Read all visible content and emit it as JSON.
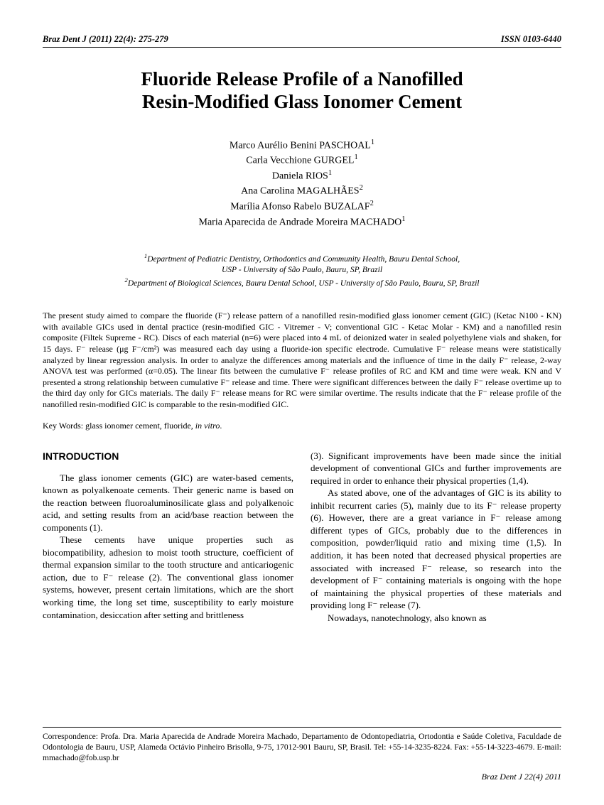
{
  "header": {
    "journal": "Braz Dent J (2011) 22(4): 275-279",
    "issn": "ISSN 0103-6440"
  },
  "title_line1": "Fluoride Release Profile of a Nanofilled",
  "title_line2": "Resin-Modified Glass Ionomer Cement",
  "authors": {
    "a1": "Marco Aurélio Benini PASCHOAL",
    "a2": "Carla Vecchione GURGEL",
    "a3": "Daniela RIOS",
    "a4": "Ana Carolina MAGALHÃES",
    "a5": "Marília Afonso Rabelo BUZALAF",
    "a6": "Maria Aparecida de Andrade Moreira MACHADO"
  },
  "affiliations": {
    "aff1": "Department of Pediatric Dentistry, Orthodontics and Community Health, Bauru Dental School,",
    "aff1b": "USP - University of São Paulo, Bauru, SP, Brazil",
    "aff2": "Department of Biological Sciences, Bauru Dental School, USP - University of São Paulo, Bauru, SP, Brazil"
  },
  "abstract": "The present study aimed to compare the fluoride (F⁻) release pattern of a nanofilled resin-modified glass ionomer cement (GIC) (Ketac N100 - KN) with available GICs used in dental practice (resin-modified GIC - Vitremer - V; conventional GIC - Ketac Molar - KM) and a nanofilled resin composite (Filtek Supreme - RC). Discs of each material (n=6) were placed into 4 mL of deionized water in sealed polyethylene vials and shaken, for 15 days. F⁻ release (μg F⁻/cm²) was measured each day using a fluoride-ion specific electrode. Cumulative F⁻ release means were statistically analyzed by linear regression analysis. In order to analyze the differences among materials and the influence of time in the daily F⁻ release, 2-way ANOVA test was performed (α=0.05). The linear fits between the cumulative F⁻ release profiles of RC and KM and time were weak. KN and V presented a strong relationship between cumulative F⁻ release and time. There were significant differences between the daily F⁻ release overtime up to the third day only for GICs materials. The daily F⁻ release means for RC were similar overtime. The results indicate that the F⁻ release profile of the nanofilled resin-modified GIC is comparable to the resin-modified GIC.",
  "keywords_label": "Key Words: ",
  "keywords_text": "glass ionomer cement, fluoride, ",
  "keywords_italic": "in vitro",
  "intro_heading": "INTRODUCTION",
  "body": {
    "p1": "The glass ionomer cements (GIC) are water-based cements, known as polyalkenoate cements. Their generic name is based on the reaction between fluoroaluminosilicate glass and polyalkenoic acid, and setting results from an acid/base reaction between the components (1).",
    "p2": "These cements have unique properties such as biocompatibility, adhesion to moist tooth structure, coefficient of thermal expansion similar to the tooth structure and anticariogenic action, due to F⁻ release (2). The conventional glass ionomer systems, however, present certain limitations, which are the short working time, the long set time, susceptibility to early moisture contamination, desiccation after setting and brittleness",
    "p3": "(3). Significant improvements have been made since the initial development of conventional GICs and further improvements are required in order to enhance their physical properties (1,4).",
    "p4": "As stated above, one of the advantages of GIC is its ability to inhibit recurrent caries (5), mainly due to its F⁻ release property (6). However, there are a great variance in F⁻ release among different types of GICs, probably due to the differences in composition, powder/liquid ratio and mixing time (1,5). In addition, it has been noted that decreased physical properties are associated with increased F⁻ release, so research into the development of F⁻ containing materials is ongoing with the hope of maintaining the physical properties of these materials and providing long F⁻ release (7).",
    "p5": "Nowadays, nanotechnology, also known as"
  },
  "correspondence": "Correspondence: Profa. Dra. Maria Aparecida de Andrade Moreira Machado, Departamento de Odontopediatria, Ortodontia e Saúde Coletiva, Faculdade de Odontologia de Bauru, USP, Alameda Octávio Pinheiro Brisolla, 9-75, 17012-901 Bauru, SP, Brasil. Tel: +55-14-3235-8224. Fax: +55-14-3223-4679. E-mail: mmachado@fob.usp.br",
  "footer": "Braz Dent J 22(4) 2011"
}
